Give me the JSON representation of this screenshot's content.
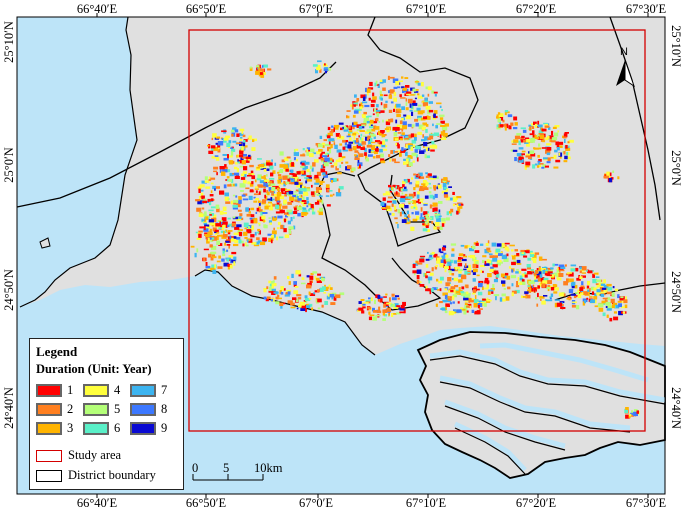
{
  "axes": {
    "top_ticks": [
      "66°40′E",
      "66°50′E",
      "67°0′E",
      "67°10′E",
      "67°20′E",
      "67°30′E"
    ],
    "bottom_ticks": [
      "66°40′E",
      "66°50′E",
      "67°0′E",
      "67°10′E",
      "67°20′E",
      "67°30′E"
    ],
    "left_ticks": [
      "25°10′N",
      "25°0′N",
      "24°50′N",
      "24°40′N"
    ],
    "right_ticks": [
      "25°10′N",
      "25°0′N",
      "24°50′N",
      "24°40′N"
    ]
  },
  "legend": {
    "title": "Legend",
    "subtitle": "Duration (Unit: Year)",
    "durations": [
      {
        "label": "1",
        "color": "#ff0000"
      },
      {
        "label": "2",
        "color": "#ff7f1f"
      },
      {
        "label": "3",
        "color": "#ffb400"
      },
      {
        "label": "4",
        "color": "#ffff3c"
      },
      {
        "label": "5",
        "color": "#b4ff78"
      },
      {
        "label": "6",
        "color": "#5af0c8"
      },
      {
        "label": "7",
        "color": "#3cb4f0"
      },
      {
        "label": "8",
        "color": "#3c78ff"
      },
      {
        "label": "9",
        "color": "#0a0ad2"
      }
    ],
    "study_area_label": "Study area",
    "district_boundary_label": "District boundary"
  },
  "scale_bar": {
    "labels": [
      "0",
      "5",
      "10km"
    ]
  },
  "north_arrow": {
    "label": "N"
  },
  "colors": {
    "sea": "#bde4f8",
    "land": "#e0e0e0",
    "study_area": "#d40000",
    "boundary": "#000000"
  }
}
